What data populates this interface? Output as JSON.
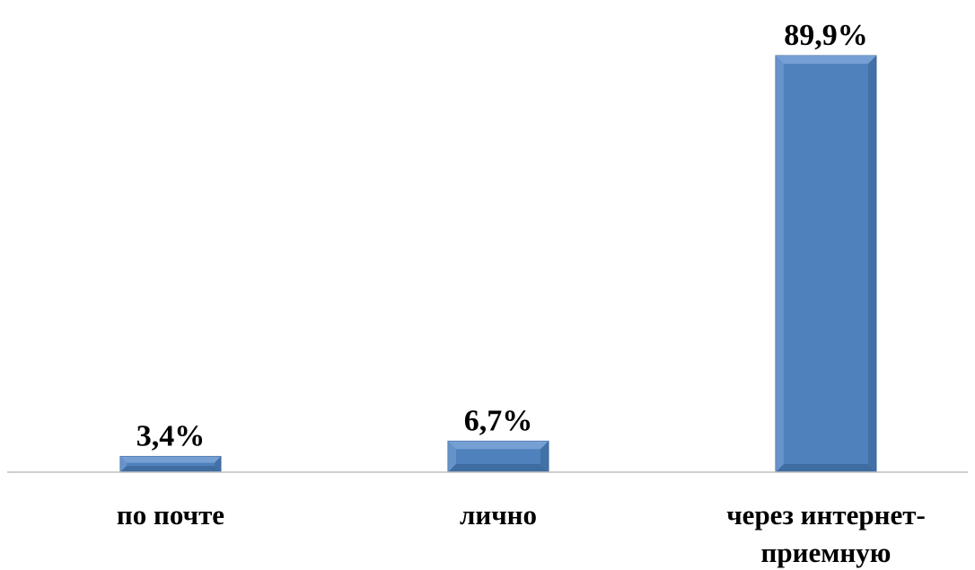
{
  "chart_data": {
    "type": "bar",
    "categories": [
      [
        "по почте"
      ],
      [
        "лично"
      ],
      [
        "через интернет-",
        "приемную"
      ]
    ],
    "values": [
      3.4,
      6.7,
      89.9
    ],
    "value_labels": [
      "3,4%",
      "6,7%",
      "89,9%"
    ],
    "ylim": [
      0,
      89.9
    ],
    "grid": false,
    "legend": "none",
    "title": "",
    "xlabel": "",
    "ylabel": ""
  },
  "colors": {
    "bar": "#4f81bd",
    "bar_light": "#7aa3d6",
    "bar_dark": "#3a6799",
    "axis": "#bfbfbf",
    "text": "#000000"
  }
}
